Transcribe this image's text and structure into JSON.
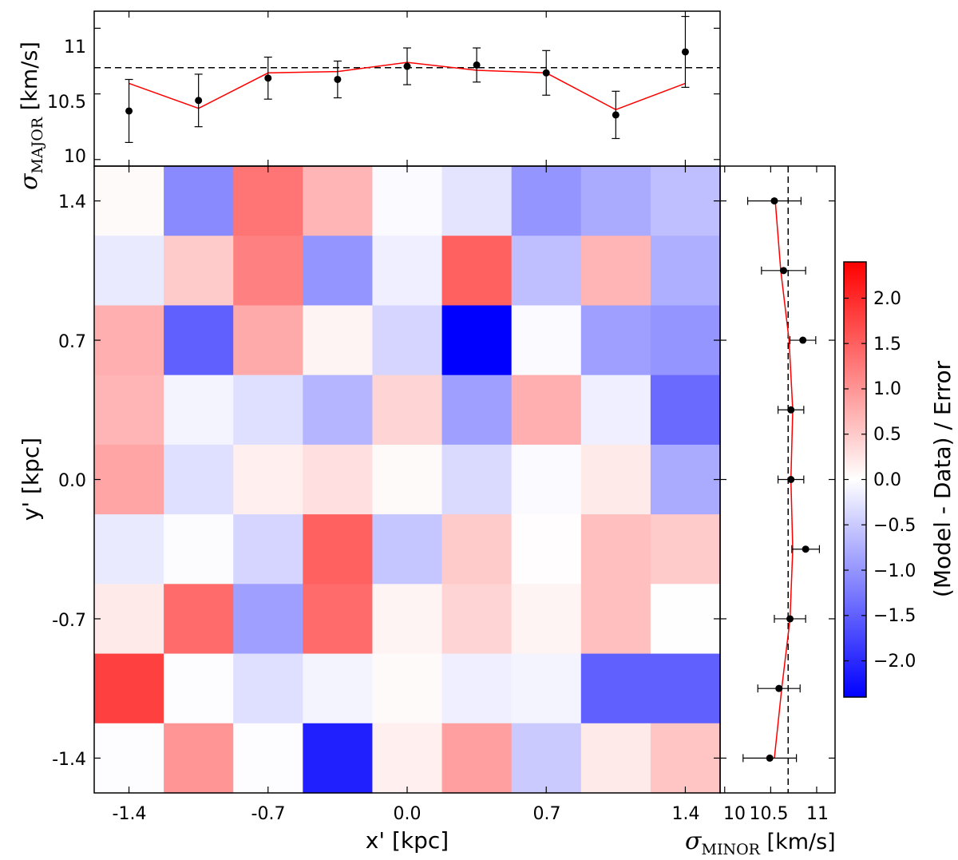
{
  "chart_data": [
    {
      "id": "residual_map",
      "type": "heatmap",
      "xlabel": "x' [kpc]",
      "ylabel": "y' [kpc]",
      "x_ticks": [
        "-1.4",
        "-0.7",
        "0.0",
        "0.7",
        "1.4"
      ],
      "y_ticks": [
        "1.4",
        "0.7",
        "0.0",
        "-0.7",
        "-1.4"
      ],
      "x_centers": [
        -1.4,
        -1.05,
        -0.7,
        -0.35,
        0.0,
        0.35,
        0.7,
        1.05,
        1.4
      ],
      "y_centers": [
        1.4,
        1.05,
        0.7,
        0.35,
        0.0,
        -0.35,
        -0.7,
        -1.05,
        -1.4
      ],
      "values": [
        [
          0.05,
          -1.1,
          1.3,
          0.7,
          -0.05,
          -0.25,
          -1.0,
          -0.8,
          -0.6
        ],
        [
          -0.2,
          0.5,
          1.2,
          -1.0,
          -0.15,
          1.5,
          -0.6,
          0.7,
          -0.75
        ],
        [
          0.75,
          -1.5,
          0.8,
          0.1,
          -0.4,
          -2.4,
          -0.05,
          -0.9,
          -1.0
        ],
        [
          0.7,
          -0.1,
          -0.3,
          -0.7,
          0.4,
          -0.9,
          0.75,
          -0.15,
          -1.4
        ],
        [
          0.85,
          -0.3,
          0.15,
          0.3,
          0.05,
          -0.35,
          -0.05,
          0.2,
          -0.8
        ],
        [
          -0.2,
          -0.03,
          -0.4,
          1.5,
          -0.55,
          0.5,
          0.02,
          0.6,
          0.5
        ],
        [
          0.2,
          1.4,
          -0.9,
          1.4,
          0.1,
          0.4,
          0.1,
          0.6,
          0.01
        ],
        [
          1.8,
          -0.02,
          -0.3,
          -0.1,
          0.05,
          -0.15,
          -0.1,
          -1.5,
          -1.5
        ],
        [
          -0.02,
          1.0,
          -0.02,
          -2.1,
          0.15,
          0.9,
          -0.5,
          0.2,
          0.55
        ]
      ]
    },
    {
      "id": "sigma_major",
      "type": "line",
      "ylabel_symbol": "σ",
      "ylabel_sub": "MAJOR",
      "ylabel_unit": " [km/s]",
      "y_ticks": [
        "10",
        "10.5",
        "11"
      ],
      "ylim": [
        9.95,
        11.13
      ],
      "x": [
        -1.4,
        -1.05,
        -0.7,
        -0.35,
        0.0,
        0.35,
        0.7,
        1.05,
        1.4
      ],
      "observed": [
        10.37,
        10.45,
        10.62,
        10.61,
        10.71,
        10.72,
        10.66,
        10.34,
        10.82
      ],
      "errors": [
        0.24,
        0.2,
        0.16,
        0.14,
        0.14,
        0.13,
        0.17,
        0.18,
        0.27
      ],
      "model": [
        10.58,
        10.39,
        10.66,
        10.67,
        10.74,
        10.68,
        10.66,
        10.38,
        10.58
      ],
      "reference": 10.7
    },
    {
      "id": "sigma_minor",
      "type": "line",
      "xlabel_symbol": "σ",
      "xlabel_sub": "MINOR",
      "xlabel_unit": " [km/s]",
      "x_ticks": [
        "10",
        "10.5",
        "11"
      ],
      "xlim": [
        9.95,
        11.2
      ],
      "y": [
        1.4,
        1.05,
        0.7,
        0.35,
        0.0,
        -0.35,
        -0.7,
        -1.05,
        -1.4
      ],
      "observed": [
        10.54,
        10.64,
        10.85,
        10.72,
        10.72,
        10.88,
        10.71,
        10.59,
        10.49
      ],
      "errors": [
        0.29,
        0.24,
        0.14,
        0.14,
        0.14,
        0.15,
        0.17,
        0.23,
        0.29
      ],
      "model": [
        10.55,
        10.61,
        10.7,
        10.74,
        10.72,
        10.74,
        10.71,
        10.62,
        10.54
      ],
      "reference": 10.69
    },
    {
      "id": "colorbar",
      "type": "colorbar",
      "label": "(Model - Data) / Error",
      "range": [
        -2.4,
        2.4
      ],
      "ticks": [
        "2.0",
        "1.5",
        "1.0",
        "0.5",
        "0.0",
        "−0.5",
        "−1.0",
        "−1.5",
        "−2.0"
      ],
      "tick_values": [
        2.0,
        1.5,
        1.0,
        0.5,
        0.0,
        -0.5,
        -1.0,
        -1.5,
        -2.0
      ],
      "colormap": "bwr",
      "colors": {
        "low": "#0000ff",
        "mid": "#ffffff",
        "high": "#ff0000"
      }
    }
  ],
  "style": {
    "marker_color": "#000000",
    "model_line_color": "#ff0000",
    "reference_line_color": "#000000"
  }
}
